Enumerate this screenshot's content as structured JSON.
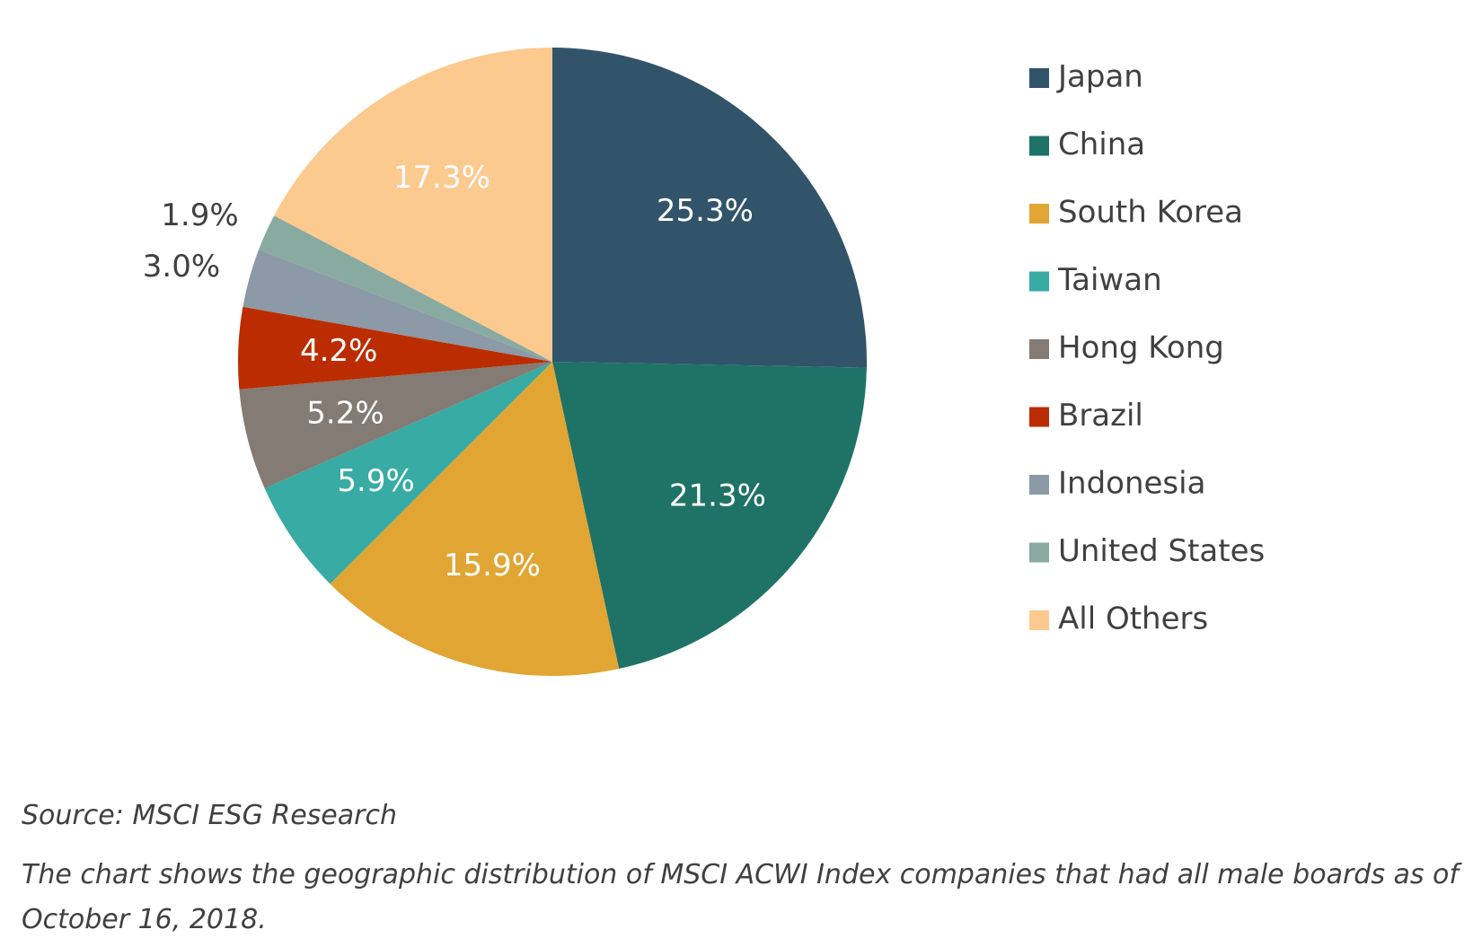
{
  "chart_data": {
    "type": "pie",
    "categories": [
      "Japan",
      "China",
      "South Korea",
      "Taiwan",
      "Hong Kong",
      "Brazil",
      "Indonesia",
      "United States",
      "All Others"
    ],
    "values": [
      25.3,
      21.3,
      15.9,
      5.9,
      5.2,
      4.2,
      3.0,
      1.9,
      17.3
    ],
    "value_labels": [
      "25.3%",
      "21.3%",
      "15.9%",
      "5.9%",
      "5.2%",
      "4.2%",
      "3.0%",
      "1.9%",
      "17.3%"
    ],
    "colors": [
      "#32546B",
      "#1F7366",
      "#E1A533",
      "#37ABA4",
      "#847B74",
      "#BB2D00",
      "#8C99A6",
      "#89AAA0",
      "#FCC98F"
    ],
    "label_colors": [
      "#FFFFFF",
      "#FFFFFF",
      "#FFFFFF",
      "#FFFFFF",
      "#FFFFFF",
      "#FFFFFF",
      "#404040",
      "#404040",
      "#FFFFFF"
    ],
    "label_outside": [
      false,
      false,
      false,
      false,
      false,
      false,
      true,
      true,
      false
    ],
    "start_angle": "12 o'clock",
    "direction": "clockwise",
    "legend_position": "right"
  },
  "source": "Source: MSCI ESG Research",
  "note": "The chart shows the geographic distribution of MSCI ACWI Index companies that had all male boards as of October 16, 2018."
}
